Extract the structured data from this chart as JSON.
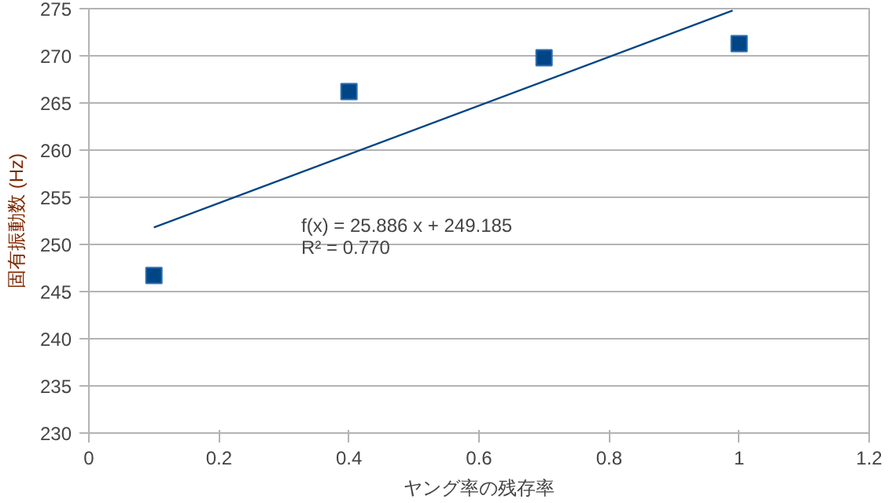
{
  "chart_data": {
    "type": "scatter",
    "xlabel": "ヤング率の残存率",
    "ylabel": "固有振動数 (Hz)",
    "series": [
      {
        "color": "#004586",
        "marker": "square",
        "x": [
          0.1,
          0.4,
          0.7,
          1.0
        ],
        "values": [
          246.7,
          266.2,
          269.8,
          271.3
        ]
      },
      {
        "type": "line",
        "color": "#004586",
        "x": [
          0.1,
          0.99
        ],
        "values": [
          251.8,
          274.8
        ]
      }
    ],
    "annotations": [
      "f(x) = 25.886 x + 249.185",
      "R² = 0.770"
    ],
    "xlim": [
      0,
      1.2
    ],
    "xticks": [
      0,
      0.2,
      0.4,
      0.6,
      0.8,
      1,
      1.2
    ],
    "ylim": [
      230,
      275
    ],
    "yticks": [
      230,
      235,
      240,
      245,
      250,
      255,
      260,
      265,
      270,
      275
    ],
    "grid": "y"
  }
}
